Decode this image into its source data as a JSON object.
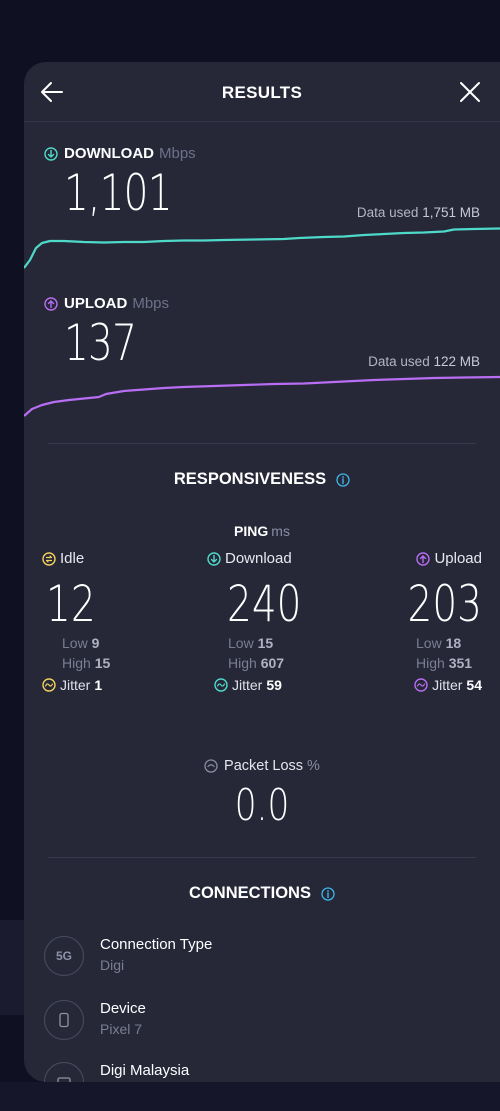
{
  "header": {
    "title": "RESULTS"
  },
  "download": {
    "label": "DOWNLOAD",
    "unit": "Mbps",
    "value": "1,101",
    "data_used_label": "Data used",
    "data_used_value": "1,751 MB",
    "color": "#4fd9c9"
  },
  "upload": {
    "label": "UPLOAD",
    "unit": "Mbps",
    "value": "137",
    "data_used_label": "Data used",
    "data_used_value": "122 MB",
    "color": "#b76ef2"
  },
  "responsiveness": {
    "title": "RESPONSIVENESS",
    "ping_label": "PING",
    "ping_unit": "ms",
    "idle": {
      "label": "Idle",
      "value": "12",
      "low_label": "Low",
      "low": "9",
      "high_label": "High",
      "high": "15",
      "jitter_label": "Jitter",
      "jitter": "1",
      "color": "#f2d15c"
    },
    "download": {
      "label": "Download",
      "value": "240",
      "low_label": "Low",
      "low": "15",
      "high_label": "High",
      "high": "607",
      "jitter_label": "Jitter",
      "jitter": "59",
      "color": "#4fd9c9"
    },
    "upload": {
      "label": "Upload",
      "value": "203",
      "low_label": "Low",
      "low": "18",
      "high_label": "High",
      "high": "351",
      "jitter_label": "Jitter",
      "jitter": "54",
      "color": "#b76ef2"
    },
    "packet_loss_label": "Packet Loss",
    "packet_loss_unit": "%",
    "packet_loss_value": "0.0"
  },
  "connections": {
    "title": "CONNECTIONS",
    "items": [
      {
        "icon": "5g-icon",
        "icon_text": "5G",
        "title": "Connection Type",
        "subtitle": "Digi"
      },
      {
        "icon": "phone-icon",
        "title": "Device",
        "subtitle": "Pixel 7"
      },
      {
        "icon": "sim-icon",
        "title": "Digi Malaysia",
        "subtitle": ""
      }
    ]
  },
  "colors": {
    "accent_info": "#3fb6e6",
    "panel_bg": "#262838",
    "page_bg": "#0f1021"
  }
}
